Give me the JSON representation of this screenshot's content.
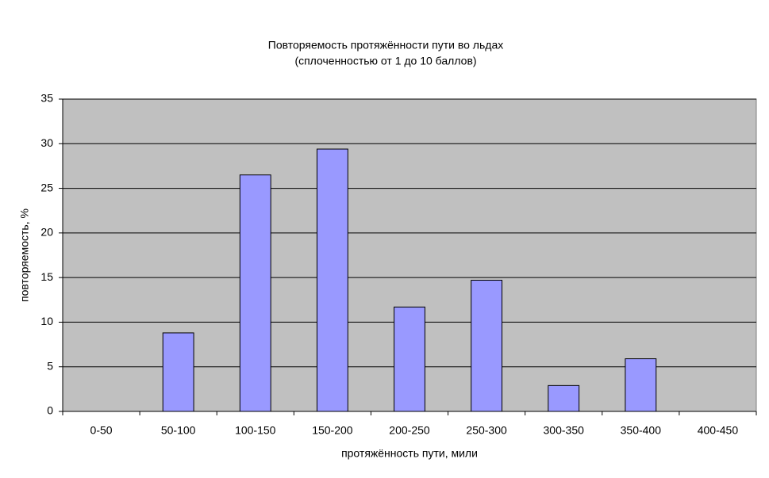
{
  "chart_data": {
    "type": "bar",
    "title": "Повторяемость протяжённости пути во льдах",
    "subtitle": "(сплоченностью от 1 до 10 баллов)",
    "x_label": "протяжённость пути, мили",
    "y_label": "повторяемость, %",
    "categories": [
      "0-50",
      "50-100",
      "100-150",
      "150-200",
      "200-250",
      "250-300",
      "300-350",
      "350-400",
      "400-450"
    ],
    "values": [
      0,
      8.8,
      26.5,
      29.4,
      11.7,
      14.7,
      2.9,
      5.9,
      0
    ],
    "color": "#9999ff",
    "ylim": [
      0,
      35
    ],
    "yticks": [
      0,
      5,
      10,
      15,
      20,
      25,
      30,
      35
    ],
    "grid": true
  }
}
